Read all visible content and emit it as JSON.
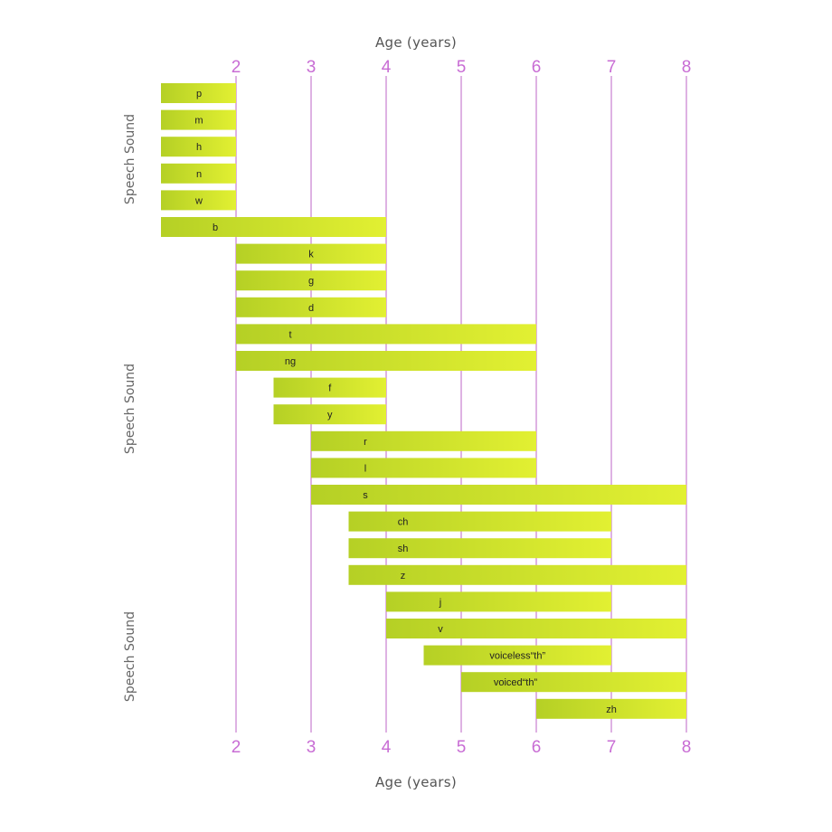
{
  "labels": {
    "x_title_top": "Age (years)",
    "x_title_bottom": "Age (years)",
    "y_label_1": "Speech Sound",
    "y_label_2": "Speech Sound",
    "y_label_3": "Speech Sound"
  },
  "chart_data": {
    "type": "bar",
    "orientation": "horizontal-range",
    "xlabel": "Age (years)",
    "ylabel": "Speech Sound",
    "xlim": [
      1,
      8
    ],
    "xticks": [
      2,
      3,
      4,
      5,
      6,
      7,
      8
    ],
    "grid": true,
    "colors": {
      "bar_start": "#b5d025",
      "bar_end": "#e2f032",
      "gridline": "#c77ed0",
      "tick_label": "#c86cd4",
      "bar_label": "#222222"
    },
    "bars": [
      {
        "sound": "p",
        "start": 1,
        "end": 2
      },
      {
        "sound": "m",
        "start": 1,
        "end": 2
      },
      {
        "sound": "h",
        "start": 1,
        "end": 2
      },
      {
        "sound": "n",
        "start": 1,
        "end": 2
      },
      {
        "sound": "w",
        "start": 1,
        "end": 2
      },
      {
        "sound": "b",
        "start": 1,
        "end": 4
      },
      {
        "sound": "k",
        "start": 2,
        "end": 4
      },
      {
        "sound": "g",
        "start": 2,
        "end": 4
      },
      {
        "sound": "d",
        "start": 2,
        "end": 4
      },
      {
        "sound": "t",
        "start": 2,
        "end": 6
      },
      {
        "sound": "ng",
        "start": 2,
        "end": 6
      },
      {
        "sound": "f",
        "start": 2.5,
        "end": 4
      },
      {
        "sound": "y",
        "start": 2.5,
        "end": 4
      },
      {
        "sound": "r",
        "start": 3,
        "end": 6
      },
      {
        "sound": "l",
        "start": 3,
        "end": 6
      },
      {
        "sound": "s",
        "start": 3,
        "end": 8
      },
      {
        "sound": "ch",
        "start": 3.5,
        "end": 7
      },
      {
        "sound": "sh",
        "start": 3.5,
        "end": 7
      },
      {
        "sound": "z",
        "start": 3.5,
        "end": 8
      },
      {
        "sound": "j",
        "start": 4,
        "end": 7
      },
      {
        "sound": "v",
        "start": 4,
        "end": 8
      },
      {
        "sound": "voiceless“th”",
        "start": 4.5,
        "end": 7
      },
      {
        "sound": "voiced“th”",
        "start": 5,
        "end": 8
      },
      {
        "sound": "zh",
        "start": 6,
        "end": 8
      }
    ]
  }
}
